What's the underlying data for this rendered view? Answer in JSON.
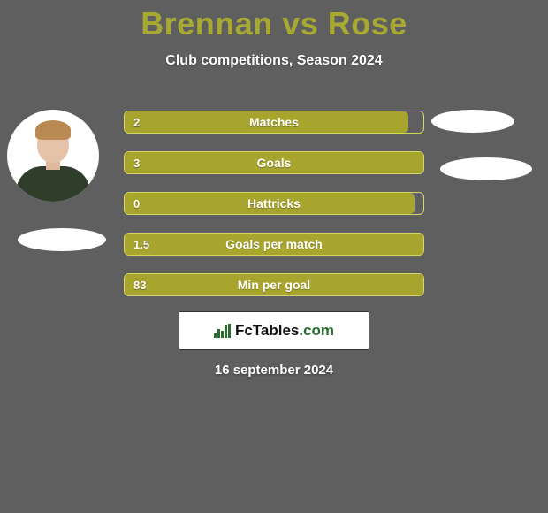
{
  "title": "Brennan vs Rose",
  "subtitle": "Club competitions, Season 2024",
  "date": "16 september 2024",
  "brand": {
    "name": "FcTables",
    "domain": ".com"
  },
  "colors": {
    "background": "#5f5f5f",
    "accent": "#a7a932",
    "bar_fill": "#a8a52e",
    "bar_border": "#d7d66a",
    "text": "#ffffff",
    "brand_green": "#2a6b2f"
  },
  "stats": [
    {
      "label": "Matches",
      "value": "2",
      "fill_pct": 95
    },
    {
      "label": "Goals",
      "value": "3",
      "fill_pct": 100
    },
    {
      "label": "Hattricks",
      "value": "0",
      "fill_pct": 97
    },
    {
      "label": "Goals per match",
      "value": "1.5",
      "fill_pct": 100
    },
    {
      "label": "Min per goal",
      "value": "83",
      "fill_pct": 100
    }
  ]
}
